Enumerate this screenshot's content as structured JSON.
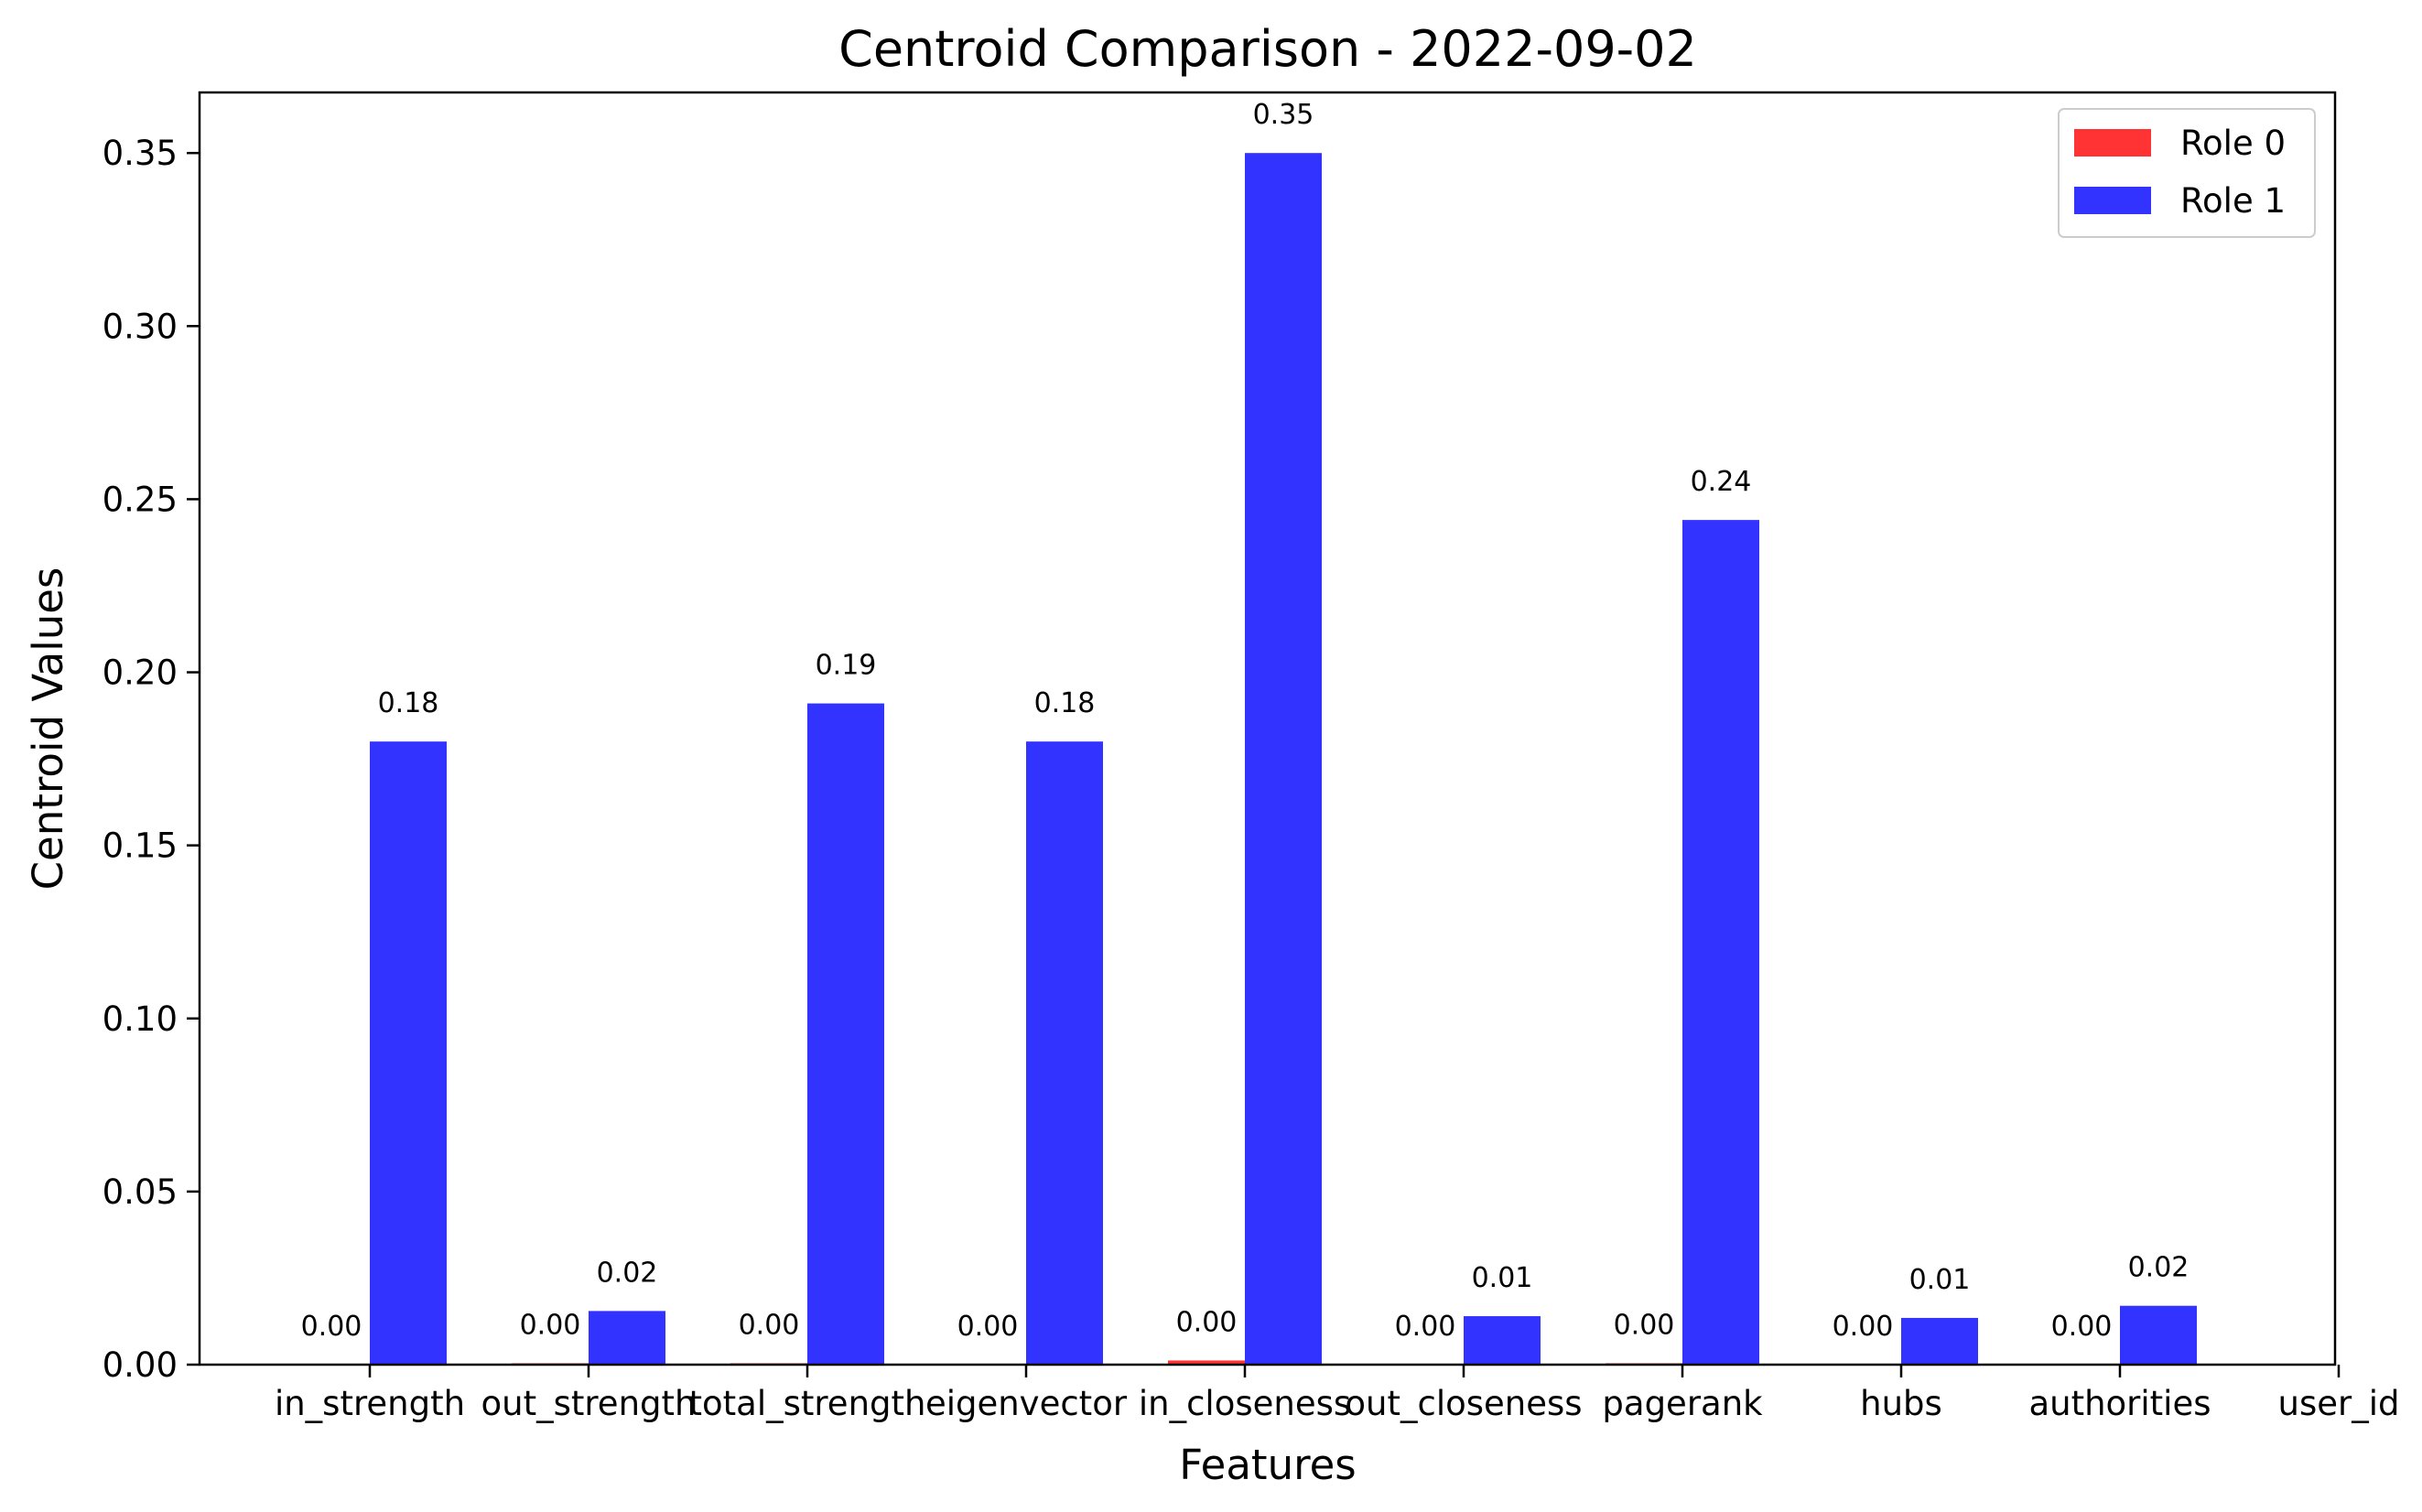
{
  "chart_data": {
    "type": "bar",
    "title": "Centroid Comparison - 2022-09-02",
    "xlabel": "Features",
    "ylabel": "Centroid Values",
    "categories": [
      "in_strength",
      "out_strength",
      "total_strength",
      "eigenvector",
      "in_closeness",
      "out_closeness",
      "pagerank",
      "hubs",
      "authorities",
      "user_id"
    ],
    "series": [
      {
        "name": "Role 0",
        "color": "#ff3333",
        "values": [
          0.0,
          0.0004,
          0.0004,
          0.0,
          0.0012,
          0.0,
          0.0004,
          0.0,
          0.0,
          null
        ],
        "labels": [
          "0.00",
          "0.00",
          "0.00",
          "0.00",
          "0.00",
          "0.00",
          "0.00",
          "0.00",
          "0.00",
          ""
        ]
      },
      {
        "name": "Role 1",
        "color": "#3333ff",
        "values": [
          0.18,
          0.0155,
          0.191,
          0.18,
          0.35,
          0.014,
          0.244,
          0.0135,
          0.017,
          null
        ],
        "labels": [
          "0.18",
          "0.02",
          "0.19",
          "0.18",
          "0.35",
          "0.01",
          "0.24",
          "0.01",
          "0.02",
          ""
        ]
      }
    ],
    "ylim": [
      0,
      0.3675
    ],
    "yticks": [
      "0.00",
      "0.05",
      "0.10",
      "0.15",
      "0.20",
      "0.25",
      "0.30",
      "0.35"
    ],
    "ytick_values": [
      0,
      0.05,
      0.1,
      0.15,
      0.2,
      0.25,
      0.3,
      0.35
    ],
    "grid": false,
    "legend": "top-right"
  }
}
